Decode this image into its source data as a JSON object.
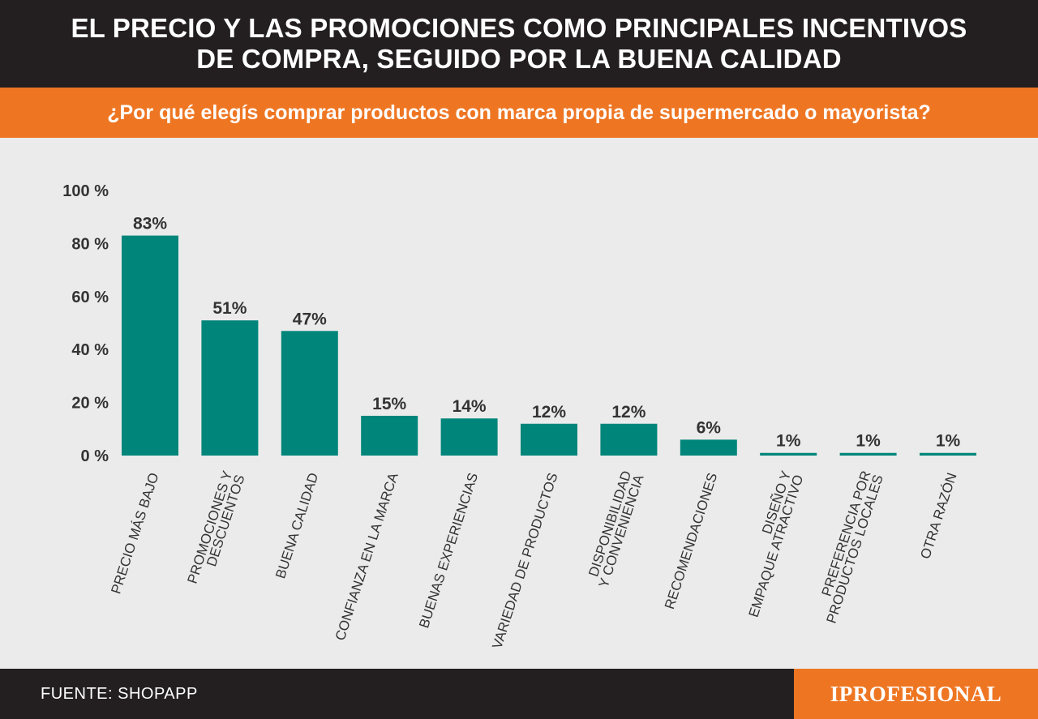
{
  "header": {
    "title_line1": "EL PRECIO Y LAS PROMOCIONES COMO PRINCIPALES INCENTIVOS",
    "title_line2": "DE COMPRA, SEGUIDO POR LA BUENA CALIDAD"
  },
  "subheader": {
    "question": "¿Por qué elegís comprar productos con marca propia de supermercado o mayorista?"
  },
  "footer": {
    "source": "FUENTE: SHOPAPP",
    "logo_text": "IPROFESIONAL"
  },
  "colors": {
    "bar": "#00857a",
    "header_bg": "#231f20",
    "accent": "#ee7623",
    "background": "#ebebeb"
  },
  "chart_data": {
    "type": "bar",
    "title": "",
    "xlabel": "",
    "ylabel": "",
    "ylim": [
      0,
      100
    ],
    "yticks": [
      "0 %",
      "20 %",
      "40 %",
      "60 %",
      "80 %",
      "100 %"
    ],
    "grid": false,
    "categories": [
      [
        "PRECIO MÁS BAJO"
      ],
      [
        "PROMOCIONES Y",
        "DESCUENTOS"
      ],
      [
        "BUENA CALIDAD"
      ],
      [
        "CONFIANZA EN LA MARCA"
      ],
      [
        "BUENAS EXPERIENCIAS"
      ],
      [
        "VARIEDAD DE PRODUCTOS"
      ],
      [
        "DISPONIBILIDAD",
        "Y CONVENIENCIA"
      ],
      [
        "RECOMENDACIONES"
      ],
      [
        "DISEÑO Y",
        "EMPAQUE ATRACTIVO"
      ],
      [
        "PREFERENCIA POR",
        "PRODUCTOS LOCALES"
      ],
      [
        "OTRA RAZÓN"
      ]
    ],
    "values": [
      83,
      51,
      47,
      15,
      14,
      12,
      12,
      6,
      1,
      1,
      1
    ],
    "value_labels": [
      "83%",
      "51%",
      "47%",
      "15%",
      "14%",
      "12%",
      "12%",
      "6%",
      "1%",
      "1%",
      "1%"
    ]
  }
}
